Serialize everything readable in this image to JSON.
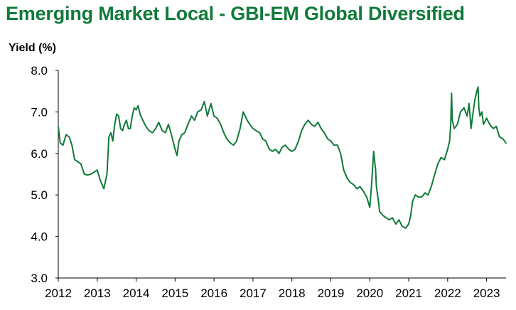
{
  "chart_data": {
    "type": "line",
    "title": "Emerging Market Local - GBI-EM Global Diversified",
    "xlabel": "",
    "ylabel": "Yield (%)",
    "ylim": [
      3.0,
      8.0
    ],
    "yticks": [
      "3.0",
      "4.0",
      "5.0",
      "6.0",
      "7.0",
      "8.0"
    ],
    "xlim": [
      2012.0,
      2023.5
    ],
    "xticks": [
      "2012",
      "2013",
      "2014",
      "2015",
      "2016",
      "2017",
      "2018",
      "2019",
      "2020",
      "2021",
      "2022",
      "2023"
    ],
    "grid": false,
    "legend": "none",
    "series": [
      {
        "color": "#107a3a",
        "x": [
          2012.0,
          2012.05,
          2012.12,
          2012.2,
          2012.28,
          2012.35,
          2012.42,
          2012.5,
          2012.58,
          2012.67,
          2012.75,
          2012.83,
          2012.92,
          2013.0,
          2013.08,
          2013.17,
          2013.25,
          2013.3,
          2013.35,
          2013.4,
          2013.45,
          2013.5,
          2013.55,
          2013.6,
          2013.65,
          2013.7,
          2013.75,
          2013.8,
          2013.85,
          2013.9,
          2013.95,
          2014.0,
          2014.05,
          2014.1,
          2014.17,
          2014.25,
          2014.33,
          2014.42,
          2014.5,
          2014.58,
          2014.67,
          2014.75,
          2014.83,
          2014.92,
          2015.0,
          2015.05,
          2015.1,
          2015.17,
          2015.25,
          2015.33,
          2015.42,
          2015.5,
          2015.58,
          2015.67,
          2015.75,
          2015.83,
          2015.92,
          2016.0,
          2016.08,
          2016.17,
          2016.25,
          2016.33,
          2016.42,
          2016.5,
          2016.58,
          2016.67,
          2016.75,
          2016.8,
          2016.85,
          2016.92,
          2017.0,
          2017.08,
          2017.17,
          2017.25,
          2017.33,
          2017.42,
          2017.5,
          2017.58,
          2017.67,
          2017.75,
          2017.83,
          2017.92,
          2018.0,
          2018.08,
          2018.17,
          2018.25,
          2018.33,
          2018.42,
          2018.5,
          2018.58,
          2018.67,
          2018.75,
          2018.83,
          2018.92,
          2019.0,
          2019.08,
          2019.17,
          2019.25,
          2019.33,
          2019.42,
          2019.5,
          2019.58,
          2019.67,
          2019.75,
          2019.83,
          2019.92,
          2020.0,
          2020.05,
          2020.1,
          2020.15,
          2020.17,
          2020.2,
          2020.23,
          2020.25,
          2020.3,
          2020.35,
          2020.42,
          2020.5,
          2020.58,
          2020.67,
          2020.75,
          2020.83,
          2020.92,
          2021.0,
          2021.05,
          2021.1,
          2021.17,
          2021.25,
          2021.33,
          2021.42,
          2021.5,
          2021.58,
          2021.67,
          2021.75,
          2021.83,
          2021.92,
          2022.0,
          2022.05,
          2022.08,
          2022.1,
          2022.12,
          2022.17,
          2022.25,
          2022.33,
          2022.42,
          2022.5,
          2022.55,
          2022.6,
          2022.67,
          2022.7,
          2022.75,
          2022.78,
          2022.8,
          2022.83,
          2022.88,
          2022.92,
          2023.0,
          2023.08,
          2023.17,
          2023.25,
          2023.33,
          2023.42,
          2023.5
        ],
        "y": [
          6.65,
          6.25,
          6.2,
          6.45,
          6.4,
          6.2,
          5.85,
          5.8,
          5.75,
          5.5,
          5.48,
          5.5,
          5.55,
          5.6,
          5.35,
          5.15,
          5.5,
          6.4,
          6.5,
          6.3,
          6.7,
          6.95,
          6.9,
          6.6,
          6.55,
          6.7,
          6.8,
          6.6,
          6.6,
          6.9,
          7.1,
          7.05,
          7.15,
          6.95,
          6.8,
          6.65,
          6.55,
          6.5,
          6.6,
          6.75,
          6.55,
          6.5,
          6.7,
          6.4,
          6.1,
          5.95,
          6.3,
          6.45,
          6.5,
          6.7,
          6.9,
          6.8,
          7.0,
          7.05,
          7.25,
          6.9,
          7.2,
          6.9,
          6.85,
          6.7,
          6.5,
          6.35,
          6.25,
          6.2,
          6.3,
          6.6,
          7.0,
          6.9,
          6.8,
          6.7,
          6.6,
          6.55,
          6.5,
          6.35,
          6.3,
          6.1,
          6.05,
          6.1,
          6.0,
          6.15,
          6.2,
          6.1,
          6.05,
          6.1,
          6.3,
          6.55,
          6.7,
          6.8,
          6.7,
          6.65,
          6.75,
          6.6,
          6.5,
          6.35,
          6.3,
          6.2,
          6.2,
          6.0,
          5.6,
          5.4,
          5.3,
          5.25,
          5.15,
          5.2,
          5.1,
          4.95,
          4.7,
          5.3,
          6.05,
          5.6,
          5.2,
          5.0,
          4.8,
          4.6,
          4.55,
          4.5,
          4.45,
          4.4,
          4.45,
          4.3,
          4.4,
          4.25,
          4.2,
          4.3,
          4.5,
          4.85,
          5.0,
          4.95,
          4.95,
          5.05,
          5.0,
          5.2,
          5.5,
          5.75,
          5.9,
          5.85,
          6.1,
          6.3,
          6.7,
          7.45,
          6.8,
          6.6,
          6.7,
          7.0,
          7.1,
          6.9,
          7.2,
          6.6,
          7.1,
          7.3,
          7.5,
          7.6,
          7.1,
          6.9,
          7.0,
          6.7,
          6.85,
          6.7,
          6.6,
          6.65,
          6.4,
          6.35,
          6.25
        ]
      }
    ]
  },
  "colors": {
    "title": "#107a3a",
    "series": "#107a3a",
    "axis": "#000000"
  }
}
